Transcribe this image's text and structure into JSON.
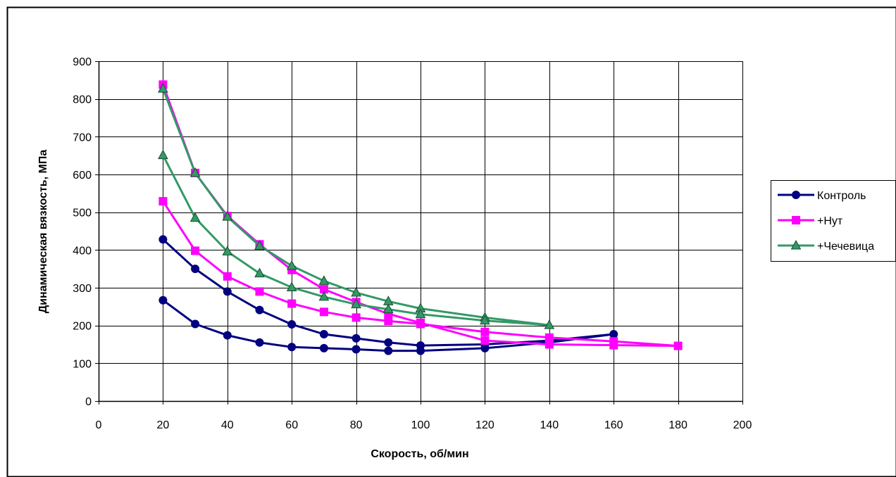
{
  "chart_data": {
    "type": "line",
    "title": "",
    "xlabel": "Скорость, об/мин",
    "ylabel": "Динамическая вязкость, МПа",
    "xlim": [
      0,
      200
    ],
    "ylim": [
      0,
      900
    ],
    "xticks": [
      0,
      20,
      40,
      60,
      80,
      100,
      120,
      140,
      160,
      180,
      200
    ],
    "yticks": [
      0,
      100,
      200,
      300,
      400,
      500,
      600,
      700,
      800,
      900
    ],
    "grid": true,
    "legend_position": "right",
    "series": [
      {
        "name": "Контроль",
        "color": "#000080",
        "marker": "circle",
        "points": [
          [
            20,
            428
          ],
          [
            30,
            350
          ],
          [
            40,
            290
          ],
          [
            50,
            241
          ],
          [
            60,
            203
          ],
          [
            70,
            177
          ],
          [
            80,
            166
          ],
          [
            90,
            155
          ],
          [
            100,
            147
          ],
          [
            120,
            150
          ],
          [
            140,
            160
          ],
          [
            160,
            177
          ],
          [
            140,
            155
          ],
          [
            120,
            140
          ],
          [
            100,
            133
          ],
          [
            90,
            133
          ],
          [
            80,
            137
          ],
          [
            70,
            140
          ],
          [
            60,
            143
          ],
          [
            50,
            155
          ],
          [
            40,
            174
          ],
          [
            30,
            204
          ],
          [
            20,
            267
          ]
        ]
      },
      {
        "name": "+Нут",
        "color": "#FF00FF",
        "marker": "square",
        "points": [
          [
            20,
            838
          ],
          [
            30,
            604
          ],
          [
            40,
            490
          ],
          [
            50,
            415
          ],
          [
            60,
            347
          ],
          [
            70,
            296
          ],
          [
            80,
            262
          ],
          [
            90,
            231
          ],
          [
            100,
            207
          ],
          [
            120,
            160
          ],
          [
            140,
            150
          ],
          [
            160,
            148
          ],
          [
            180,
            146
          ],
          [
            160,
            158
          ],
          [
            140,
            168
          ],
          [
            120,
            183
          ],
          [
            100,
            204
          ],
          [
            90,
            212
          ],
          [
            80,
            221
          ],
          [
            70,
            236
          ],
          [
            60,
            258
          ],
          [
            50,
            290
          ],
          [
            40,
            330
          ],
          [
            30,
            398
          ],
          [
            20,
            529
          ]
        ]
      },
      {
        "name": "+Чечевица",
        "color": "#339966",
        "marker": "triangle",
        "points": [
          [
            20,
            827
          ],
          [
            30,
            604
          ],
          [
            40,
            488
          ],
          [
            50,
            411
          ],
          [
            60,
            358
          ],
          [
            70,
            318
          ],
          [
            80,
            287
          ],
          [
            90,
            264
          ],
          [
            100,
            245
          ],
          [
            120,
            221
          ],
          [
            140,
            201
          ],
          [
            120,
            213
          ],
          [
            100,
            230
          ],
          [
            90,
            243
          ],
          [
            80,
            256
          ],
          [
            70,
            276
          ],
          [
            60,
            301
          ],
          [
            50,
            338
          ],
          [
            40,
            396
          ],
          [
            30,
            485
          ],
          [
            20,
            651
          ]
        ]
      }
    ]
  }
}
